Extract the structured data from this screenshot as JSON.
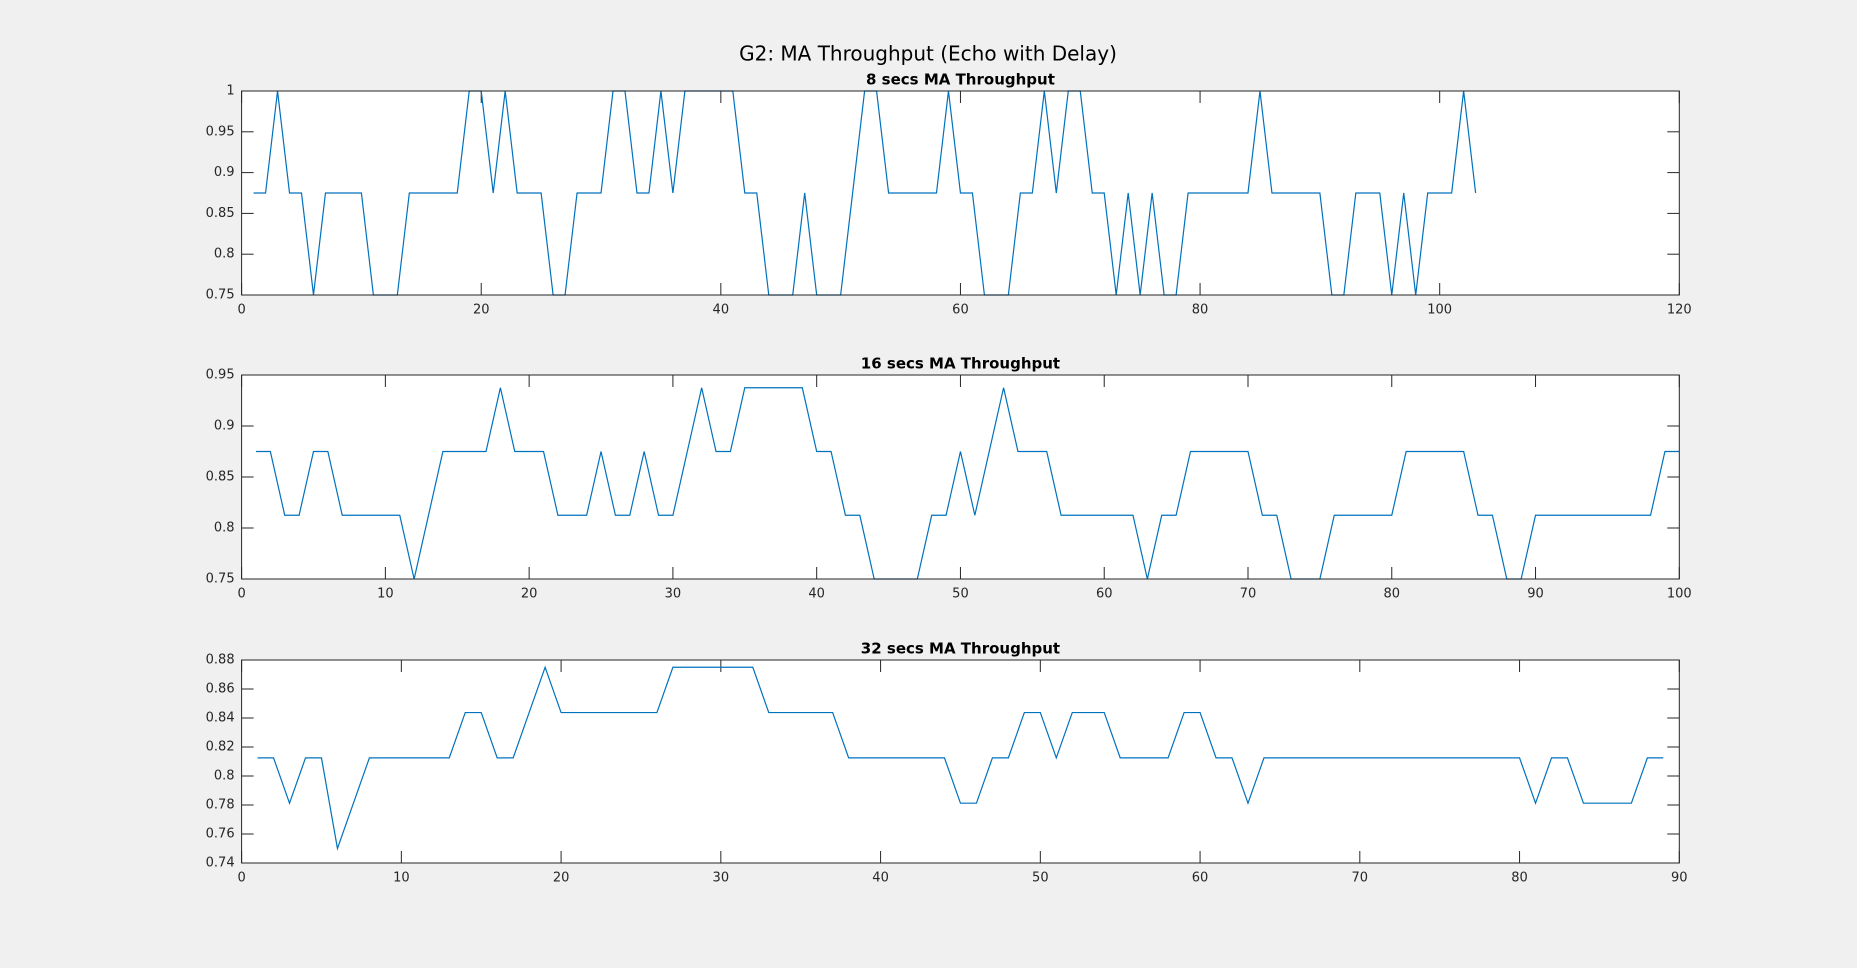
{
  "title": "G2: MA Throughput (Echo with Delay)",
  "chart_data": [
    {
      "type": "line",
      "title": "8 secs MA Throughput",
      "color": "#0072bd",
      "x": [
        1,
        2,
        3,
        4,
        5,
        6,
        7,
        8,
        9,
        10,
        11,
        12,
        13,
        14,
        15,
        16,
        17,
        18,
        19,
        20,
        21,
        22,
        23,
        24,
        25,
        26,
        27,
        28,
        29,
        30,
        31,
        32,
        33,
        34,
        35,
        36,
        37,
        38,
        39,
        40,
        41,
        42,
        43,
        44,
        45,
        46,
        47,
        48,
        49,
        50,
        51,
        52,
        53,
        54,
        55,
        56,
        57,
        58,
        59,
        60,
        61,
        62,
        63,
        64,
        65,
        66,
        67,
        68,
        69,
        70,
        71,
        72,
        73,
        74,
        75,
        76,
        77,
        78,
        79,
        80,
        81,
        82,
        83,
        84,
        85,
        86,
        87,
        88,
        89,
        90,
        91,
        92,
        93,
        94,
        95,
        96,
        97,
        98,
        99,
        100,
        101,
        102,
        103
      ],
      "values": [
        0.875,
        0.875,
        1,
        0.875,
        0.875,
        0.75,
        0.875,
        0.875,
        0.875,
        0.875,
        0.75,
        0.75,
        0.75,
        0.875,
        0.875,
        0.875,
        0.875,
        0.875,
        1,
        1,
        0.875,
        1,
        0.875,
        0.875,
        0.875,
        0.75,
        0.75,
        0.875,
        0.875,
        0.875,
        1,
        1,
        0.875,
        0.875,
        1,
        0.875,
        1,
        1,
        1,
        1,
        1,
        0.875,
        0.875,
        0.75,
        0.75,
        0.75,
        0.875,
        0.75,
        0.75,
        0.75,
        0.875,
        1,
        1,
        0.875,
        0.875,
        0.875,
        0.875,
        0.875,
        1,
        0.875,
        0.875,
        0.75,
        0.75,
        0.75,
        0.875,
        0.875,
        1,
        0.875,
        1,
        1,
        0.875,
        0.875,
        0.75,
        0.875,
        0.75,
        0.875,
        0.75,
        0.75,
        0.875,
        0.875,
        0.875,
        0.875,
        0.875,
        0.875,
        1,
        0.875,
        0.875,
        0.875,
        0.875,
        0.875,
        0.75,
        0.75,
        0.875,
        0.875,
        0.875,
        0.75,
        0.875,
        0.75,
        0.875,
        0.875,
        0.875,
        1,
        0.875
      ],
      "xlim": [
        0,
        120
      ],
      "xticks": [
        0,
        20,
        40,
        60,
        80,
        100,
        120
      ],
      "ylim": [
        0.75,
        1
      ],
      "yticks": [
        0.75,
        0.8,
        0.85,
        0.9,
        0.95,
        1
      ]
    },
    {
      "type": "line",
      "title": "16 secs MA Throughput",
      "color": "#0072bd",
      "x": [
        1,
        2,
        3,
        4,
        5,
        6,
        7,
        8,
        9,
        10,
        11,
        12,
        13,
        14,
        15,
        16,
        17,
        18,
        19,
        20,
        21,
        22,
        23,
        24,
        25,
        26,
        27,
        28,
        29,
        30,
        31,
        32,
        33,
        34,
        35,
        36,
        37,
        38,
        39,
        40,
        41,
        42,
        43,
        44,
        45,
        46,
        47,
        48,
        49,
        50,
        51,
        52,
        53,
        54,
        55,
        56,
        57,
        58,
        59,
        60,
        61,
        62,
        63,
        64,
        65,
        66,
        67,
        68,
        69,
        70,
        71,
        72,
        73,
        74,
        75,
        76,
        77,
        78,
        79,
        80,
        81,
        82,
        83,
        84,
        85,
        86,
        87,
        88,
        89,
        90,
        91,
        92,
        93,
        94,
        95,
        96,
        97,
        98,
        99,
        100
      ],
      "values": [
        0.875,
        0.875,
        0.8125,
        0.8125,
        0.875,
        0.875,
        0.8125,
        0.8125,
        0.8125,
        0.8125,
        0.8125,
        0.75,
        0.8125,
        0.875,
        0.875,
        0.875,
        0.875,
        0.9375,
        0.875,
        0.875,
        0.875,
        0.8125,
        0.8125,
        0.8125,
        0.875,
        0.8125,
        0.8125,
        0.875,
        0.8125,
        0.8125,
        0.875,
        0.9375,
        0.875,
        0.875,
        0.9375,
        0.9375,
        0.9375,
        0.9375,
        0.9375,
        0.875,
        0.875,
        0.8125,
        0.8125,
        0.75,
        0.75,
        0.75,
        0.75,
        0.8125,
        0.8125,
        0.875,
        0.8125,
        0.875,
        0.9375,
        0.875,
        0.875,
        0.875,
        0.8125,
        0.8125,
        0.8125,
        0.8125,
        0.8125,
        0.8125,
        0.75,
        0.8125,
        0.8125,
        0.875,
        0.875,
        0.875,
        0.875,
        0.875,
        0.8125,
        0.8125,
        0.75,
        0.75,
        0.75,
        0.8125,
        0.8125,
        0.8125,
        0.8125,
        0.8125,
        0.875,
        0.875,
        0.875,
        0.875,
        0.875,
        0.8125,
        0.8125,
        0.75,
        0.75,
        0.8125,
        0.8125,
        0.8125,
        0.8125,
        0.8125,
        0.8125,
        0.8125,
        0.8125,
        0.8125,
        0.875,
        0.875
      ],
      "xlim": [
        0,
        100
      ],
      "xticks": [
        0,
        10,
        20,
        30,
        40,
        50,
        60,
        70,
        80,
        90,
        100
      ],
      "ylim": [
        0.75,
        0.95
      ],
      "yticks": [
        0.75,
        0.8,
        0.85,
        0.9,
        0.95
      ]
    },
    {
      "type": "line",
      "title": "32 secs MA Throughput",
      "color": "#0072bd",
      "x": [
        1,
        2,
        3,
        4,
        5,
        6,
        7,
        8,
        9,
        10,
        11,
        12,
        13,
        14,
        15,
        16,
        17,
        18,
        19,
        20,
        21,
        22,
        23,
        24,
        25,
        26,
        27,
        28,
        29,
        30,
        31,
        32,
        33,
        34,
        35,
        36,
        37,
        38,
        39,
        40,
        41,
        42,
        43,
        44,
        45,
        46,
        47,
        48,
        49,
        50,
        51,
        52,
        53,
        54,
        55,
        56,
        57,
        58,
        59,
        60,
        61,
        62,
        63,
        64,
        65,
        66,
        67,
        68,
        69,
        70,
        71,
        72,
        73,
        74,
        75,
        76,
        77,
        78,
        79,
        80,
        81,
        82,
        83,
        84,
        85,
        86,
        87,
        88,
        89
      ],
      "values": [
        0.8125,
        0.8125,
        0.78125,
        0.8125,
        0.8125,
        0.75,
        0.78125,
        0.8125,
        0.8125,
        0.8125,
        0.8125,
        0.8125,
        0.8125,
        0.84375,
        0.84375,
        0.8125,
        0.8125,
        0.84375,
        0.875,
        0.84375,
        0.84375,
        0.84375,
        0.84375,
        0.84375,
        0.84375,
        0.84375,
        0.875,
        0.875,
        0.875,
        0.875,
        0.875,
        0.875,
        0.84375,
        0.84375,
        0.84375,
        0.84375,
        0.84375,
        0.8125,
        0.8125,
        0.8125,
        0.8125,
        0.8125,
        0.8125,
        0.8125,
        0.78125,
        0.78125,
        0.8125,
        0.8125,
        0.84375,
        0.84375,
        0.8125,
        0.84375,
        0.84375,
        0.84375,
        0.8125,
        0.8125,
        0.8125,
        0.8125,
        0.84375,
        0.84375,
        0.8125,
        0.8125,
        0.78125,
        0.8125,
        0.8125,
        0.8125,
        0.8125,
        0.8125,
        0.8125,
        0.8125,
        0.8125,
        0.8125,
        0.8125,
        0.8125,
        0.8125,
        0.8125,
        0.8125,
        0.8125,
        0.8125,
        0.8125,
        0.78125,
        0.8125,
        0.8125,
        0.78125,
        0.78125,
        0.78125,
        0.78125,
        0.8125,
        0.8125
      ],
      "xlim": [
        0,
        90
      ],
      "xticks": [
        0,
        10,
        20,
        30,
        40,
        50,
        60,
        70,
        80,
        90
      ],
      "ylim": [
        0.74,
        0.88
      ],
      "yticks": [
        0.74,
        0.76,
        0.78,
        0.8,
        0.82,
        0.84,
        0.86,
        0.88
      ]
    }
  ]
}
